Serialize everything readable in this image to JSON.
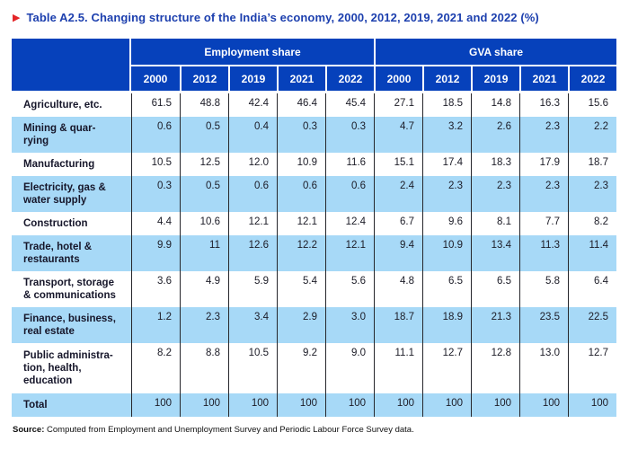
{
  "title": {
    "marker": "▶",
    "text": "Table A2.5. Changing structure of the India’s economy, 2000, 2012, 2019, 2021 and 2022 (%)"
  },
  "colors": {
    "header_blue": "#0641bb",
    "row_light_blue": "#a7d9f7",
    "title_blue": "#1c3fae",
    "marker_red": "#e42528"
  },
  "table": {
    "group_headers": [
      "Employment share",
      "GVA share"
    ],
    "years": [
      "2000",
      "2012",
      "2019",
      "2021",
      "2022"
    ],
    "rows": [
      {
        "label": "Agriculture, etc.",
        "employment": [
          "61.5",
          "48.8",
          "42.4",
          "46.4",
          "45.4"
        ],
        "gva": [
          "27.1",
          "18.5",
          "14.8",
          "16.3",
          "15.6"
        ]
      },
      {
        "label": "Mining & quar-\nrying",
        "employment": [
          "0.6",
          "0.5",
          "0.4",
          "0.3",
          "0.3"
        ],
        "gva": [
          "4.7",
          "3.2",
          "2.6",
          "2.3",
          "2.2"
        ]
      },
      {
        "label": "Manufacturing",
        "employment": [
          "10.5",
          "12.5",
          "12.0",
          "10.9",
          "11.6"
        ],
        "gva": [
          "15.1",
          "17.4",
          "18.3",
          "17.9",
          "18.7"
        ]
      },
      {
        "label": "Electricity, gas &\nwater supply",
        "employment": [
          "0.3",
          "0.5",
          "0.6",
          "0.6",
          "0.6"
        ],
        "gva": [
          "2.4",
          "2.3",
          "2.3",
          "2.3",
          "2.3"
        ]
      },
      {
        "label": "Construction",
        "employment": [
          "4.4",
          "10.6",
          "12.1",
          "12.1",
          "12.4"
        ],
        "gva": [
          "6.7",
          "9.6",
          "8.1",
          "7.7",
          "8.2"
        ]
      },
      {
        "label": "Trade, hotel &\nrestaurants",
        "employment": [
          "9.9",
          "11",
          "12.6",
          "12.2",
          "12.1"
        ],
        "gva": [
          "9.4",
          "10.9",
          "13.4",
          "11.3",
          "11.4"
        ]
      },
      {
        "label": "Transport, storage\n& communications",
        "employment": [
          "3.6",
          "4.9",
          "5.9",
          "5.4",
          "5.6"
        ],
        "gva": [
          "4.8",
          "6.5",
          "6.5",
          "5.8",
          "6.4"
        ]
      },
      {
        "label": "Finance, business,\nreal estate",
        "employment": [
          "1.2",
          "2.3",
          "3.4",
          "2.9",
          "3.0"
        ],
        "gva": [
          "18.7",
          "18.9",
          "21.3",
          "23.5",
          "22.5"
        ]
      },
      {
        "label": "Public administra-\ntion, health,\neducation",
        "employment": [
          "8.2",
          "8.8",
          "10.5",
          "9.2",
          "9.0"
        ],
        "gva": [
          "11.1",
          "12.7",
          "12.8",
          "13.0",
          "12.7"
        ]
      },
      {
        "label": "Total",
        "employment": [
          "100",
          "100",
          "100",
          "100",
          "100"
        ],
        "gva": [
          "100",
          "100",
          "100",
          "100",
          "100"
        ]
      }
    ]
  },
  "source": {
    "label": "Source:",
    "text": " Computed from Employment and Unemployment Survey and Periodic Labour Force Survey data."
  }
}
